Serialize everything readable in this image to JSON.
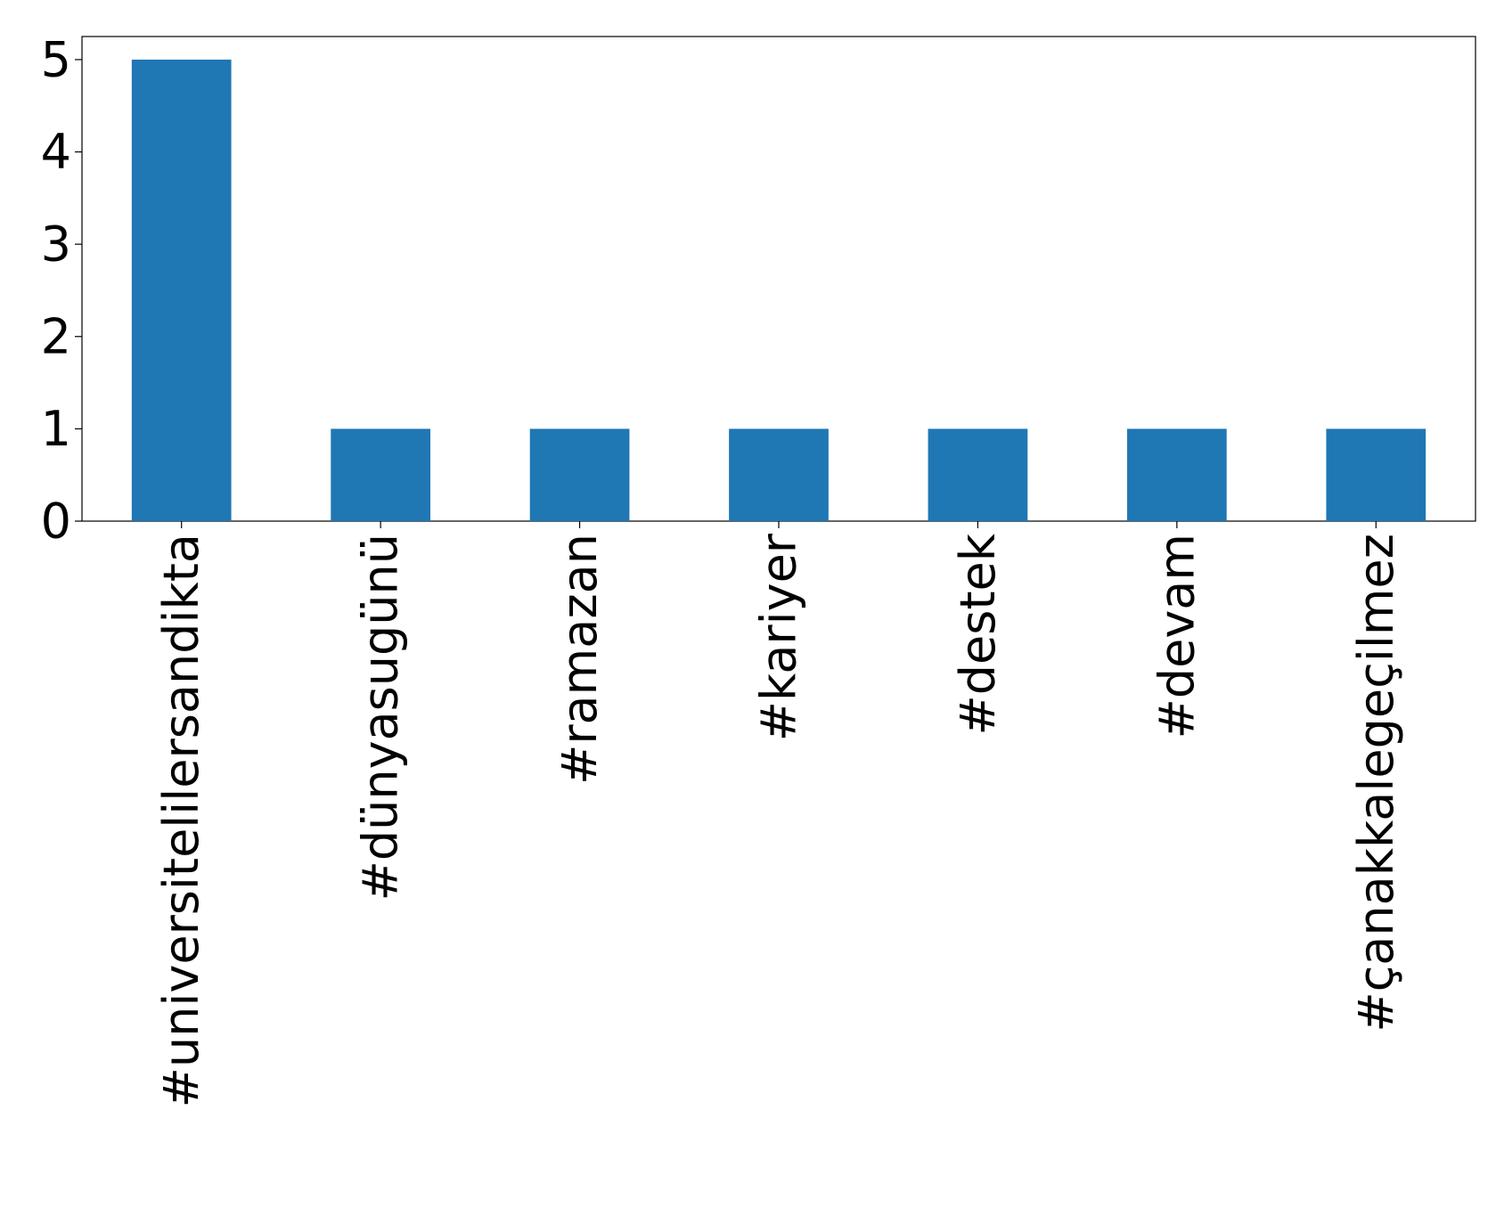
{
  "chart_data": {
    "type": "bar",
    "categories": [
      "#universitelilersandikta",
      "#dünyasugünü",
      "#ramazan",
      "#kariyer",
      "#destek",
      "#devam",
      "#çanakkalegeçilmez"
    ],
    "values": [
      5,
      1,
      1,
      1,
      1,
      1,
      1
    ],
    "color": "#1f77b4",
    "ylim": [
      0,
      5.25
    ],
    "yticks": [
      0,
      1,
      2,
      3,
      4,
      5
    ],
    "grid": false
  }
}
